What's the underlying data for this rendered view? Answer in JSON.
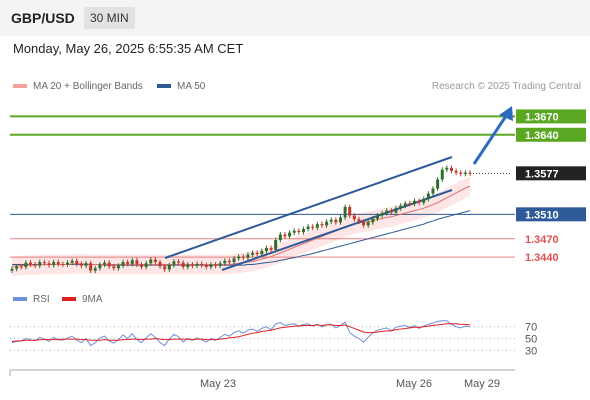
{
  "header": {
    "pair": "GBP/USD",
    "timeframe": "30 MIN"
  },
  "datetime": "Monday, May 26, 2025 6:55:35 AM CET",
  "legend": {
    "items": [
      {
        "label": "MA 20 + Bollinger Bands",
        "color": "#f4a09c"
      },
      {
        "label": "MA 50",
        "color": "#2e5a99"
      }
    ],
    "source": "Research © 2025 Trading Central"
  },
  "rsi_legend": {
    "items": [
      {
        "label": "RSI",
        "color": "#6e8fdc"
      },
      {
        "label": "9MA",
        "color": "#e02020"
      }
    ]
  },
  "colors": {
    "resistance": "#5aa821",
    "pivot": "#2e5a99",
    "support": "#e05050",
    "bull_candle": "#2f6e2a",
    "bear_candle": "#c0392b",
    "channel": "#2e5a99",
    "arrow": "#2e6bbf",
    "band_fill": "#fde2e0"
  },
  "chart_data": {
    "type": "candlestick",
    "price_range": [
      1.337,
      1.3705
    ],
    "x_ticks": [
      "May 23",
      "May 26",
      "May 29"
    ],
    "levels": [
      {
        "label": "1.3670",
        "value": 1.367,
        "kind": "resistance"
      },
      {
        "label": "1.3640",
        "value": 1.364,
        "kind": "resistance"
      },
      {
        "label": "1.3577",
        "value": 1.3577,
        "kind": "last"
      },
      {
        "label": "1.3510",
        "value": 1.351,
        "kind": "pivot"
      },
      {
        "label": "1.3470",
        "value": 1.347,
        "kind": "support"
      },
      {
        "label": "1.3440",
        "value": 1.344,
        "kind": "support"
      }
    ],
    "closes": [
      1.3421,
      1.3425,
      1.3424,
      1.3431,
      1.3428,
      1.3426,
      1.3432,
      1.343,
      1.3427,
      1.3432,
      1.3429,
      1.3428,
      1.3431,
      1.3434,
      1.3429,
      1.3426,
      1.343,
      1.3418,
      1.3422,
      1.3428,
      1.3431,
      1.3425,
      1.3422,
      1.3426,
      1.3432,
      1.3429,
      1.3435,
      1.3428,
      1.3424,
      1.343,
      1.3436,
      1.3432,
      1.3425,
      1.342,
      1.3427,
      1.3433,
      1.3431,
      1.3424,
      1.3428,
      1.3426,
      1.3429,
      1.3427,
      1.3424,
      1.3428,
      1.3426,
      1.343,
      1.3434,
      1.3432,
      1.3438,
      1.3441,
      1.3439,
      1.3444,
      1.3447,
      1.3445,
      1.345,
      1.3455,
      1.3452,
      1.3468,
      1.3477,
      1.3474,
      1.348,
      1.3483,
      1.3481,
      1.3486,
      1.349,
      1.3488,
      1.3494,
      1.3492,
      1.3498,
      1.3501,
      1.3497,
      1.3505,
      1.3522,
      1.3508,
      1.3502,
      1.3498,
      1.3492,
      1.3497,
      1.3503,
      1.3508,
      1.3512,
      1.3516,
      1.3513,
      1.352,
      1.3524,
      1.3528,
      1.3527,
      1.3532,
      1.3529,
      1.3535,
      1.3544,
      1.3552,
      1.3567,
      1.3583,
      1.3586,
      1.3581,
      1.3578,
      1.3576,
      1.3578,
      1.3577
    ],
    "ma20": [
      1.3425,
      1.3426,
      1.3426,
      1.3427,
      1.3427,
      1.3427,
      1.3428,
      1.3428,
      1.3428,
      1.3428,
      1.3428,
      1.3428,
      1.3428,
      1.3429,
      1.3429,
      1.3429,
      1.3429,
      1.3428,
      1.3428,
      1.3428,
      1.3428,
      1.3428,
      1.3428,
      1.3428,
      1.3428,
      1.3428,
      1.3428,
      1.3428,
      1.3428,
      1.3428,
      1.3428,
      1.3428,
      1.3428,
      1.3428,
      1.3428,
      1.3428,
      1.3428,
      1.3428,
      1.3428,
      1.3428,
      1.3428,
      1.3428,
      1.3428,
      1.3428,
      1.3428,
      1.3428,
      1.3428,
      1.3428,
      1.3429,
      1.343,
      1.3431,
      1.3432,
      1.3433,
      1.3435,
      1.3437,
      1.3439,
      1.3441,
      1.3444,
      1.3447,
      1.345,
      1.3453,
      1.3456,
      1.3459,
      1.3462,
      1.3465,
      1.3468,
      1.3471,
      1.3474,
      1.3477,
      1.348,
      1.3483,
      1.3486,
      1.349,
      1.3492,
      1.3494,
      1.3496,
      1.3497,
      1.3498,
      1.35,
      1.3502,
      1.3503,
      1.3505,
      1.3506,
      1.3508,
      1.351,
      1.3512,
      1.3514,
      1.3516,
      1.3518,
      1.352,
      1.3523,
      1.3526,
      1.3529,
      1.3533,
      1.3537,
      1.3541,
      1.3545,
      1.3549,
      1.3553,
      1.3556
    ],
    "ma50": [
      1.3428,
      1.3428,
      1.3428,
      1.3428,
      1.3428,
      1.3428,
      1.3428,
      1.3428,
      1.3428,
      1.3428,
      1.3428,
      1.3428,
      1.3428,
      1.3428,
      1.3428,
      1.3428,
      1.3428,
      1.3428,
      1.3428,
      1.3428,
      1.3427,
      1.3427,
      1.3427,
      1.3427,
      1.3427,
      1.3427,
      1.3427,
      1.3427,
      1.3427,
      1.3427,
      1.3427,
      1.3427,
      1.3427,
      1.3427,
      1.3427,
      1.3427,
      1.3427,
      1.3427,
      1.3427,
      1.3427,
      1.3427,
      1.3427,
      1.3427,
      1.3427,
      1.3427,
      1.3427,
      1.3427,
      1.3427,
      1.3427,
      1.3427,
      1.3427,
      1.3428,
      1.3428,
      1.3429,
      1.343,
      1.3431,
      1.3432,
      1.3433,
      1.3435,
      1.3436,
      1.3438,
      1.3439,
      1.3441,
      1.3443,
      1.3444,
      1.3446,
      1.3448,
      1.345,
      1.3452,
      1.3454,
      1.3456,
      1.3458,
      1.346,
      1.3462,
      1.3464,
      1.3466,
      1.3468,
      1.347,
      1.3472,
      1.3474,
      1.3476,
      1.3478,
      1.348,
      1.3482,
      1.3484,
      1.3486,
      1.3488,
      1.349,
      1.3492,
      1.3494,
      1.3497,
      1.3499,
      1.3502,
      1.3504,
      1.3506,
      1.3508,
      1.351,
      1.3512,
      1.3514,
      1.3516
    ],
    "rsi": {
      "ticks": [
        70,
        50,
        30
      ],
      "values": [
        43,
        45,
        46,
        50,
        48,
        46,
        52,
        49,
        45,
        52,
        48,
        47,
        51,
        54,
        47,
        43,
        50,
        38,
        43,
        51,
        54,
        46,
        42,
        48,
        56,
        50,
        58,
        48,
        43,
        51,
        58,
        52,
        43,
        38,
        49,
        57,
        53,
        44,
        50,
        47,
        51,
        48,
        44,
        50,
        47,
        52,
        57,
        54,
        60,
        63,
        59,
        64,
        66,
        62,
        67,
        70,
        65,
        75,
        77,
        72,
        74,
        75,
        71,
        74,
        75,
        71,
        74,
        70,
        73,
        74,
        68,
        72,
        78,
        60,
        54,
        50,
        44,
        52,
        60,
        64,
        66,
        68,
        63,
        69,
        71,
        72,
        69,
        72,
        67,
        71,
        74,
        76,
        79,
        80,
        80,
        74,
        70,
        68,
        71,
        70
      ],
      "ma9": [
        45,
        46,
        46,
        47,
        47,
        47,
        48,
        48,
        48,
        48,
        48,
        49,
        49,
        49,
        49,
        48,
        48,
        47,
        47,
        47,
        48,
        47,
        47,
        47,
        48,
        48,
        49,
        49,
        48,
        49,
        49,
        50,
        49,
        48,
        48,
        49,
        49,
        49,
        49,
        48,
        49,
        49,
        48,
        48,
        48,
        49,
        50,
        51,
        52,
        53,
        55,
        57,
        59,
        60,
        62,
        63,
        64,
        66,
        68,
        69,
        70,
        71,
        71,
        72,
        72,
        72,
        73,
        72,
        73,
        73,
        72,
        72,
        73,
        70,
        67,
        64,
        61,
        60,
        60,
        61,
        62,
        63,
        63,
        65,
        66,
        67,
        68,
        69,
        69,
        70,
        71,
        72,
        73,
        74,
        75,
        75,
        75,
        74,
        74,
        73
      ]
    }
  }
}
